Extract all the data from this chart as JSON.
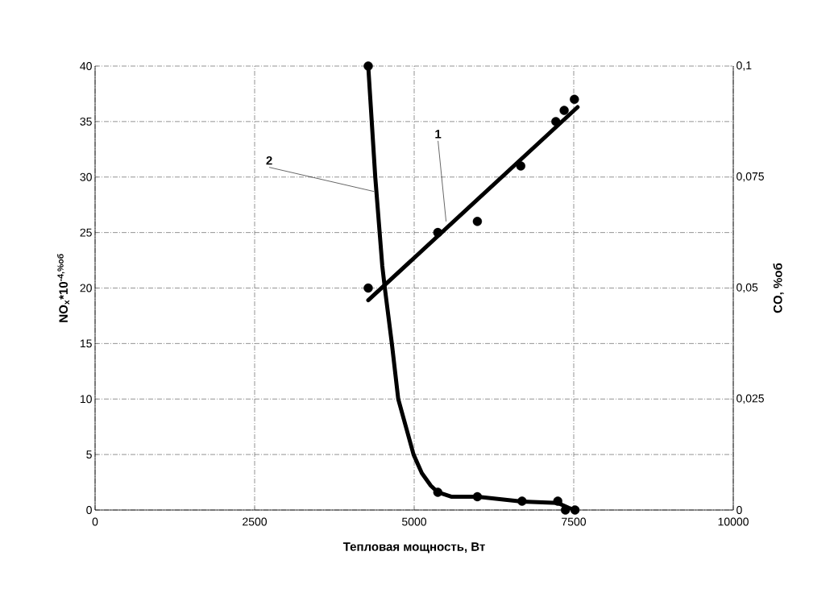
{
  "chart_data": {
    "type": "scatter",
    "xlabel": "Тепловая мощность, Вт",
    "ylabel": "NO$_{x}$*10$^{-4,%об}$",
    "y2label": "CO, %об",
    "xlim": [
      0,
      10000
    ],
    "ylim": [
      0,
      40
    ],
    "y2lim": [
      0,
      0.1
    ],
    "xticks": [
      0,
      2500,
      5000,
      7500,
      10000
    ],
    "yticks": [
      0,
      5,
      10,
      15,
      20,
      25,
      30,
      35,
      40
    ],
    "y2ticks": [
      0,
      {
        "value": 0.025,
        "label": "0,025"
      },
      {
        "value": 0.05,
        "label": "0,05"
      },
      {
        "value": 0.075,
        "label": "0,075"
      },
      {
        "value": 0.1,
        "label": "0,1"
      }
    ],
    "grid": true,
    "line_style": "solid",
    "series": [
      {
        "marker": "circle",
        "color": "#000000",
        "x": [
          4280,
          5370,
          5990,
          6670,
          7220,
          7350,
          7510
        ],
        "values": [
          20,
          25,
          26,
          31,
          35,
          36,
          37
        ]
      },
      {
        "type": "line",
        "marker": "none",
        "color": "#000000",
        "x": [
          4280,
          7560
        ],
        "values": [
          18.9,
          36.3
        ]
      },
      {
        "marker": "circle",
        "axis": "y2",
        "color": "#000000",
        "x": [
          4280,
          5370,
          5990,
          6690,
          7250,
          7370,
          7520
        ],
        "values": [
          0.1,
          0.004,
          0.003,
          0.002,
          0.002,
          0,
          0
        ]
      },
      {
        "type": "line",
        "marker": "none",
        "axis": "y2",
        "color": "#000000",
        "x": [
          4280,
          4390,
          4500,
          4540,
          4650,
          4750,
          4990,
          5120,
          5260,
          5370,
          5580,
          5990,
          6690,
          7250,
          7420,
          7520
        ],
        "values": [
          0.1,
          0.075,
          0.055,
          0.05,
          0.0375,
          0.025,
          0.0125,
          0.0083,
          0.0055,
          0.004,
          0.003,
          0.003,
          0.0019,
          0.0016,
          0.0005,
          0
        ]
      }
    ],
    "annotations": [
      {
        "text": "1",
        "x": 5500,
        "y": 26.0
      },
      {
        "text": "2",
        "x": 4370,
        "y": 28.7
      }
    ]
  }
}
